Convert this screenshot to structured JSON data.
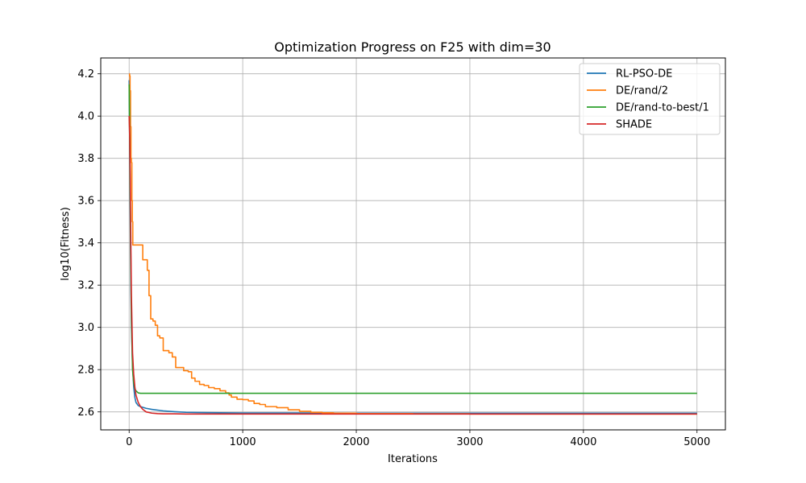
{
  "chart_data": {
    "type": "line",
    "title": "Optimization Progress on F25 with dim=30",
    "xlabel": "Iterations",
    "ylabel": "log10(Fitness)",
    "xlim": [
      -250,
      5250
    ],
    "ylim": [
      2.515,
      4.275
    ],
    "xticks": [
      0,
      1000,
      2000,
      3000,
      4000,
      5000
    ],
    "yticks": [
      2.6,
      2.8,
      3.0,
      3.2,
      3.4,
      3.6,
      3.8,
      4.0,
      4.2
    ],
    "xtick_labels": [
      "0",
      "1000",
      "2000",
      "3000",
      "4000",
      "5000"
    ],
    "ytick_labels": [
      "2.6",
      "2.8",
      "3.0",
      "3.2",
      "3.4",
      "3.6",
      "3.8",
      "4.0",
      "4.2"
    ],
    "grid": true,
    "legend_position": "top-right",
    "series": [
      {
        "name": "RL-PSO-DE",
        "color": "#1f77b4",
        "step": false,
        "x": [
          0,
          5,
          10,
          15,
          20,
          30,
          40,
          50,
          60,
          80,
          100,
          150,
          200,
          300,
          400,
          500,
          600,
          800,
          1000,
          1500,
          2000,
          3000,
          4000,
          5000
        ],
        "y": [
          4.17,
          3.85,
          3.5,
          3.2,
          3.0,
          2.82,
          2.72,
          2.67,
          2.645,
          2.63,
          2.625,
          2.617,
          2.612,
          2.605,
          2.601,
          2.598,
          2.597,
          2.596,
          2.595,
          2.595,
          2.594,
          2.594,
          2.594,
          2.594
        ]
      },
      {
        "name": "DE/rand/2",
        "color": "#ff7f0e",
        "step": true,
        "x": [
          0,
          4,
          8,
          12,
          16,
          20,
          24,
          28,
          32,
          40,
          60,
          80,
          100,
          120,
          140,
          160,
          175,
          190,
          210,
          230,
          250,
          270,
          300,
          330,
          350,
          380,
          410,
          450,
          480,
          520,
          550,
          580,
          620,
          660,
          700,
          750,
          800,
          850,
          880,
          900,
          950,
          1000,
          1050,
          1100,
          1150,
          1200,
          1300,
          1400,
          1500,
          1600,
          1700,
          1800,
          2000,
          2500,
          3000,
          4000,
          5000
        ],
        "y": [
          4.2,
          4.19,
          4.12,
          3.95,
          3.8,
          3.78,
          3.6,
          3.5,
          3.39,
          3.39,
          3.39,
          3.39,
          3.39,
          3.32,
          3.32,
          3.27,
          3.15,
          3.04,
          3.03,
          3.01,
          2.96,
          2.95,
          2.89,
          2.89,
          2.88,
          2.86,
          2.81,
          2.81,
          2.795,
          2.79,
          2.76,
          2.745,
          2.73,
          2.725,
          2.715,
          2.71,
          2.7,
          2.69,
          2.68,
          2.67,
          2.66,
          2.658,
          2.652,
          2.64,
          2.635,
          2.625,
          2.62,
          2.61,
          2.603,
          2.598,
          2.596,
          2.594,
          2.592,
          2.591,
          2.59,
          2.59,
          2.59
        ]
      },
      {
        "name": "DE/rand-to-best/1",
        "color": "#2ca02c",
        "step": false,
        "x": [
          0,
          5,
          10,
          15,
          20,
          30,
          40,
          50,
          60,
          80,
          100,
          200,
          500,
          1000,
          2000,
          3000,
          4000,
          5000
        ],
        "y": [
          4.15,
          3.9,
          3.6,
          3.3,
          3.05,
          2.8,
          2.74,
          2.71,
          2.7,
          2.69,
          2.688,
          2.688,
          2.688,
          2.688,
          2.688,
          2.688,
          2.688,
          2.688
        ]
      },
      {
        "name": "SHADE",
        "color": "#d62728",
        "step": false,
        "x": [
          0,
          5,
          10,
          15,
          20,
          30,
          40,
          50,
          60,
          80,
          100,
          120,
          150,
          200,
          250,
          300,
          400,
          500,
          1000,
          2000,
          3000,
          4000,
          5000
        ],
        "y": [
          4.0,
          3.9,
          3.7,
          3.4,
          3.15,
          2.88,
          2.78,
          2.72,
          2.68,
          2.645,
          2.625,
          2.612,
          2.6,
          2.594,
          2.592,
          2.591,
          2.591,
          2.59,
          2.59,
          2.59,
          2.59,
          2.59,
          2.59
        ]
      }
    ]
  }
}
